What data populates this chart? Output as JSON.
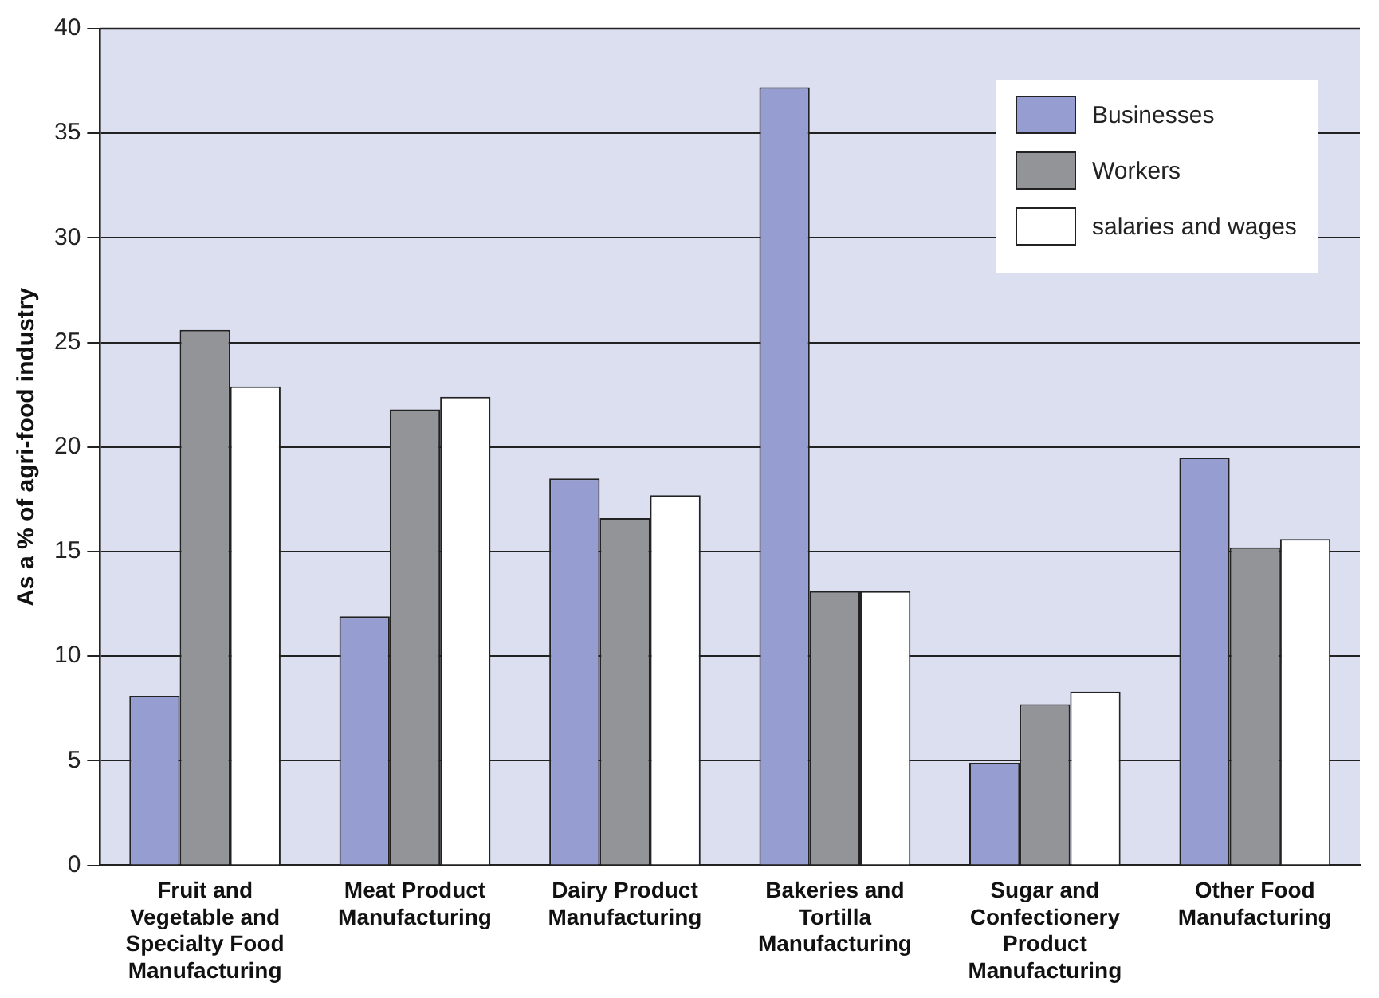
{
  "chart_data": {
    "type": "bar",
    "ylabel": "As a % of agri-food industry",
    "categories": [
      "Fruit and Vegetable and Specialty Food Manufacturing",
      "Meat Product Manufacturing",
      "Dairy Product Manufacturing",
      "Bakeries and Tortilla Manufacturing",
      "Sugar and Confectionery Product Manufacturing",
      "Other Food Manufacturing"
    ],
    "series": [
      {
        "name": "Businesses",
        "color": "#969dd0",
        "values": [
          8.1,
          11.9,
          18.5,
          37.2,
          4.9,
          19.5
        ]
      },
      {
        "name": "Workers",
        "color": "#939497",
        "values": [
          25.6,
          21.8,
          16.6,
          13.1,
          7.7,
          15.2
        ]
      },
      {
        "name": "salaries and wages",
        "color": "#ffffff",
        "values": [
          22.9,
          22.4,
          17.7,
          13.1,
          8.3,
          15.6
        ]
      }
    ],
    "ylim": [
      0,
      40
    ],
    "yticks": [
      0,
      5,
      10,
      15,
      20,
      25,
      30,
      35,
      40
    ],
    "grid": "y",
    "legend": "top right"
  }
}
